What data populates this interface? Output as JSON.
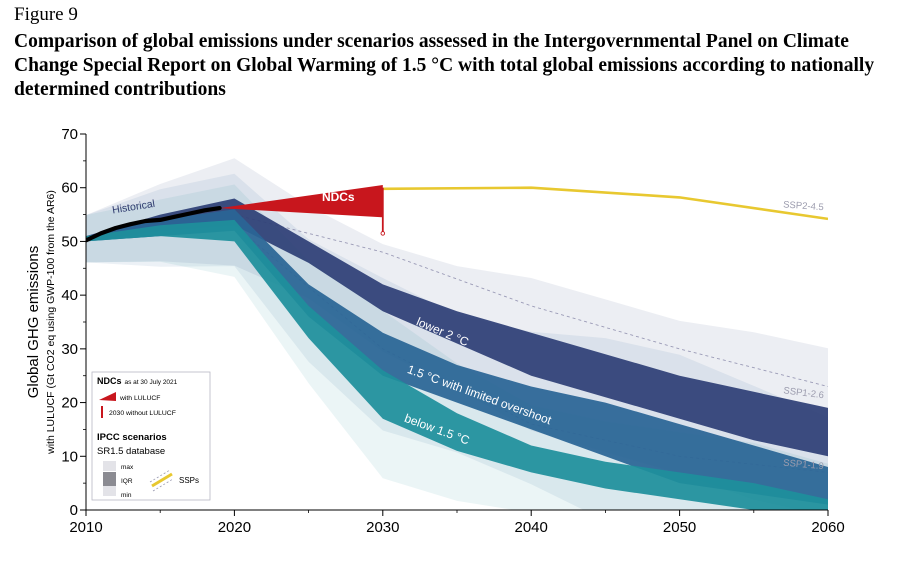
{
  "figure": {
    "label": "Figure 9",
    "title": "Comparison of global emissions under scenarios assessed in the Intergovernmental Panel on Climate Change Special Report on Global Warming of 1.5 °C with total global emissions according to nationally determined contributions"
  },
  "chart_data": {
    "type": "area",
    "ylabel_main": "Global GHG emissions",
    "ylabel_sub": "with LULUCF (Gt CO2 eq using GWP-100 from the AR6)",
    "xlim": [
      2010,
      2060
    ],
    "ylim": [
      0,
      70
    ],
    "x_ticks": [
      "2010",
      "2020",
      "2030",
      "2040",
      "2050",
      "2060"
    ],
    "y_ticks": [
      "0",
      "10",
      "20",
      "30",
      "40",
      "50",
      "60",
      "70"
    ],
    "grid": false,
    "historical": {
      "label": "Historical",
      "x": [
        2010,
        2011,
        2012,
        2013,
        2014,
        2015,
        2016,
        2017,
        2018,
        2019
      ],
      "y": [
        50.2,
        51.5,
        52.5,
        53.2,
        53.8,
        54.0,
        54.6,
        55.2,
        55.8,
        56.2
      ]
    },
    "ndcs": {
      "label": "NDCs",
      "x_start": 2019,
      "start_value": 56.2,
      "x_end": 2030,
      "with_lulucf_range": [
        54.5,
        60.5
      ],
      "without_lulucf_range": [
        51.5,
        60.0
      ]
    },
    "ssp_lines": [
      {
        "name": "SSP2-4.5",
        "x": [
          2030,
          2040,
          2050,
          2060
        ],
        "y": [
          59.8,
          60.0,
          58.2,
          54.2
        ],
        "color": "#e8c830"
      },
      {
        "name": "SSP1-2.6",
        "x": [
          2020,
          2030,
          2040,
          2050,
          2060
        ],
        "y": [
          55,
          48,
          38,
          30,
          23
        ]
      },
      {
        "name": "SSP1-1.9",
        "x": [
          2020,
          2030,
          2040,
          2050,
          2060
        ],
        "y": [
          53,
          30,
          16,
          10,
          7
        ]
      }
    ],
    "pathways": [
      {
        "name": "lower 2 °C",
        "color": "#2e3f76",
        "x": [
          2010,
          2015,
          2020,
          2025,
          2030,
          2035,
          2040,
          2045,
          2050,
          2055,
          2060
        ],
        "iqr_low": [
          50,
          52,
          53,
          46,
          37,
          31,
          25,
          21,
          17,
          13,
          10
        ],
        "iqr_high": [
          51,
          55,
          58,
          50,
          42,
          37,
          33,
          29,
          25,
          22,
          19
        ]
      },
      {
        "name": "1.5 °C with limited overshoot",
        "color": "#2a6596",
        "x": [
          2010,
          2015,
          2020,
          2025,
          2030,
          2035,
          2040,
          2045,
          2050,
          2055,
          2060
        ],
        "iqr_low": [
          50,
          51,
          52,
          36,
          25,
          20,
          15,
          10,
          5,
          3,
          1
        ],
        "iqr_high": [
          51,
          54,
          56,
          42,
          33,
          27,
          23,
          20,
          16,
          12,
          8
        ]
      },
      {
        "name": "below 1.5 °C",
        "color": "#1e8f9c",
        "x": [
          2010,
          2015,
          2020,
          2025,
          2030,
          2035,
          2040,
          2045,
          2050,
          2055,
          2060
        ],
        "iqr_low": [
          50,
          51,
          50,
          32,
          17,
          11,
          7,
          4,
          2,
          0,
          -2
        ],
        "iqr_high": [
          51,
          53,
          54,
          38,
          26,
          18,
          12,
          9,
          7,
          5,
          2
        ]
      }
    ],
    "legend": {
      "position": "bottom-left",
      "ndc_title": "NDCs",
      "ndc_title_suffix": "as at 30 July 2021",
      "ndc_with": "with LULUCF",
      "ndc_without": "2030 without LULUCF",
      "ipcc_title": "IPCC scenarios",
      "ipcc_sub": "SR1.5 database",
      "max_label": "max",
      "iqr_label": "IQR",
      "min_label": "min",
      "ssp_label": "SSPs"
    }
  }
}
